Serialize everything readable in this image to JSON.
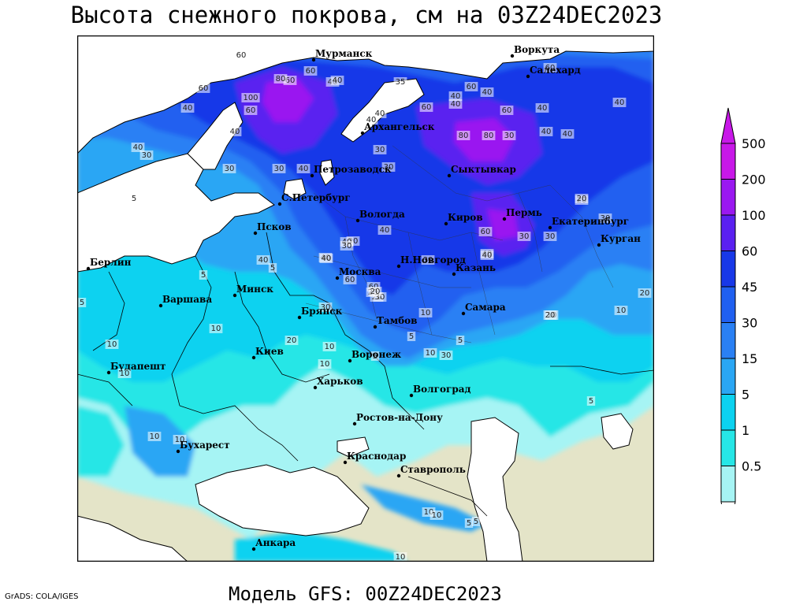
{
  "title": "Высота снежного покрова, см на 03Z24DEC2023",
  "footer": "Модель GFS: 00Z24DEC2023",
  "credit": "GrADS: COLA/IGES",
  "colors": {
    "land": "#e4e4c8",
    "sea": "#ffffff",
    "c0_5": "#a6f4f4",
    "c1": "#26e6e6",
    "c5": "#0cd2f0",
    "c15": "#2aa6f4",
    "c30": "#2a80f4",
    "c45": "#2060f0",
    "c60": "#1838e8",
    "c100": "#5a20f0",
    "c200": "#9a18f0",
    "c500": "#c818e8"
  },
  "colorbar": {
    "levels": [
      "500",
      "200",
      "100",
      "60",
      "45",
      "30",
      "15",
      "5",
      "1",
      "0.5"
    ],
    "colors": [
      "#c818e8",
      "#9a18f0",
      "#5a20f0",
      "#1838e8",
      "#2060f0",
      "#2a80f4",
      "#2aa6f4",
      "#0cd2f0",
      "#26e6e6",
      "#a6f4f4"
    ]
  },
  "cities": [
    {
      "id": "murmansk",
      "name": "Мурманск"
    },
    {
      "id": "vorkuta",
      "name": "Воркута"
    },
    {
      "id": "salekhard",
      "name": "Салехард"
    },
    {
      "id": "arkhangelsk",
      "name": "Архангельск"
    },
    {
      "id": "petrozavodsk",
      "name": "Петрозаводск"
    },
    {
      "id": "syktyvkar",
      "name": "Сыктывкар"
    },
    {
      "id": "spb",
      "name": "С.Петербург"
    },
    {
      "id": "vologda",
      "name": "Вологда"
    },
    {
      "id": "kirov",
      "name": "Киров"
    },
    {
      "id": "perm",
      "name": "Пермь"
    },
    {
      "id": "ekaterinburg",
      "name": "Екатеринбург"
    },
    {
      "id": "kurgan",
      "name": "Курган"
    },
    {
      "id": "pskov",
      "name": "Псков"
    },
    {
      "id": "nnovgorod",
      "name": "Н.Новгород"
    },
    {
      "id": "kazan",
      "name": "Казань"
    },
    {
      "id": "moskva",
      "name": "Москва"
    },
    {
      "id": "berlin",
      "name": "Берлин"
    },
    {
      "id": "warszawa",
      "name": "Варшава"
    },
    {
      "id": "minsk",
      "name": "Минск"
    },
    {
      "id": "bryansk",
      "name": "Брянск"
    },
    {
      "id": "tambov",
      "name": "Тамбов"
    },
    {
      "id": "samara",
      "name": "Самара"
    },
    {
      "id": "kiev",
      "name": "Киев"
    },
    {
      "id": "voronezh",
      "name": "Воронеж"
    },
    {
      "id": "budapest",
      "name": "Будапешт"
    },
    {
      "id": "kharkov",
      "name": "Харьков"
    },
    {
      "id": "volgograd",
      "name": "Волгоград"
    },
    {
      "id": "rostov",
      "name": "Ростов-на-Дону"
    },
    {
      "id": "bucharest",
      "name": "Бухарест"
    },
    {
      "id": "krasnodar",
      "name": "Краснодар"
    },
    {
      "id": "stavropol",
      "name": "Ставрополь"
    },
    {
      "id": "ankara",
      "name": "Анкара"
    }
  ],
  "contour_labels": [
    "60",
    "60",
    "100",
    "80",
    "60",
    "40",
    "60",
    "40",
    "40",
    "60",
    "35",
    "40",
    "40",
    "40",
    "40",
    "60",
    "80",
    "40",
    "60",
    "60",
    "60",
    "40",
    "40",
    "40",
    "40",
    "40",
    "30",
    "40",
    "30",
    "30",
    "30",
    "40",
    "30",
    "80",
    "30",
    "20",
    "30",
    "60",
    "30",
    "30",
    "20",
    "40",
    "40",
    "20",
    "30",
    "40",
    "60",
    "40",
    "40",
    "60",
    "30",
    "20",
    "30",
    "40",
    "40",
    "10",
    "5",
    "5",
    "5",
    "10",
    "5",
    "30",
    "20",
    "30",
    "20",
    "5",
    "5",
    "10",
    "5",
    "10",
    "10",
    "10",
    "20",
    "10",
    "30",
    "5",
    "10",
    "10",
    "5",
    "5",
    "10",
    "10",
    "10",
    "10",
    "20",
    "10"
  ]
}
